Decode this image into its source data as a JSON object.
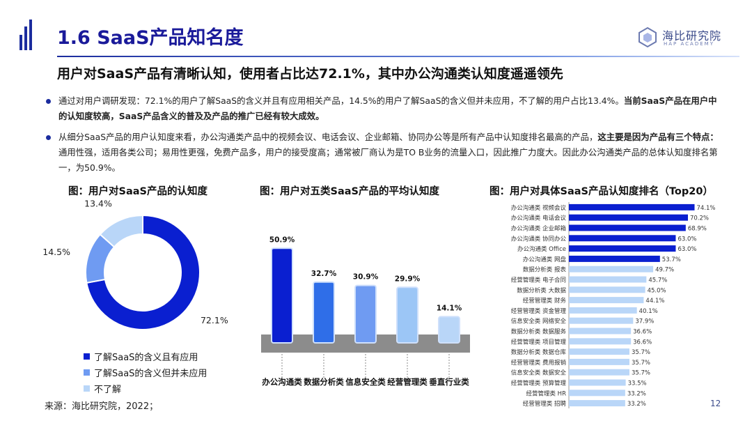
{
  "header": {
    "title": "1.6 SaaS产品知名度",
    "logo_name": "海比研究院",
    "logo_sub": "HAP ACADEMY"
  },
  "subtitle": "用户对SaaS产品有清晰认知，使用者占比达72.1%，其中办公沟通类认知度遥遥领先",
  "bullets": [
    {
      "normal": "通过对用户调研发现：72.1%的用户了解SaaS的含义并且有应用相关产品，14.5%的用户了解SaaS的含义但并未应用，不了解的用户占比13.4%。",
      "bold": "当前SaaS产品在用户中的认知度较高，SaaS产品含义的普及及产品的推广已经有较大成效。",
      "tail": ""
    },
    {
      "normal": "从细分SaaS产品的用户认知度来看，办公沟通类产品中的视频会议、电话会议、企业邮箱、协同办公等是所有产品中认知度排名最高的产品，",
      "bold": "这主要是因为产品有三个特点：",
      "tail": "通用性强，适用各类公司；易用性更强，免费产品多，用户的接受度高；通常被厂商认为是TO B业务的流量入口，因此推广力度大。因此办公沟通类产品的总体认知度排名第一，为50.9%。"
    }
  ],
  "figures": {
    "donut_title": "图：用户对SaaS产品的认知度",
    "bar_title": "图：用户对五类SaaS产品的平均认知度",
    "rank_title": "图：用户对具体SaaS产品认知度排名（Top20）"
  },
  "legend": [
    {
      "label": "了解SaaS的含义且有应用",
      "color": "#0a1fd0"
    },
    {
      "label": "了解SaaS的含义但并未应用",
      "color": "#6f9bf2"
    },
    {
      "label": "不了解",
      "color": "#b9d6f8"
    }
  ],
  "chart_data": [
    {
      "type": "pie",
      "title": "图：用户对SaaS产品的认知度",
      "categories": [
        "了解SaaS的含义且有应用",
        "了解SaaS的含义但并未应用",
        "不了解"
      ],
      "values": [
        72.1,
        14.5,
        13.4
      ],
      "labels": [
        "72.1%",
        "14.5%",
        "13.4%"
      ],
      "colors": [
        "#0a1fd0",
        "#6f9bf2",
        "#b9d6f8"
      ],
      "legend": "bottom-left"
    },
    {
      "type": "bar",
      "title": "图：用户对五类SaaS产品的平均认知度",
      "categories": [
        "办公沟通类",
        "数据分析类",
        "信息安全类",
        "经营管理类",
        "垂直行业类"
      ],
      "values": [
        50.9,
        32.7,
        30.9,
        29.9,
        14.1
      ],
      "labels": [
        "50.9%",
        "32.7%",
        "30.9%",
        "29.9%",
        "14.1%"
      ],
      "colors": [
        "#0a1fd0",
        "#2f6ee8",
        "#6f9bf2",
        "#9cc6f6",
        "#b9d6f8"
      ],
      "ylim": [
        0,
        60
      ]
    },
    {
      "type": "bar",
      "orientation": "horizontal",
      "title": "图：用户对具体SaaS产品认知度排名（Top20）",
      "categories": [
        "办公沟通类  视频会议",
        "办公沟通类  电话会议",
        "办公沟通类  企业邮箱",
        "办公沟通类  协同办公",
        "办公沟通类  Office",
        "办公沟通类  网盘",
        "数据分析类  报表",
        "经营管理类  电子合同",
        "数据分析类  大数据",
        "经营管理类  财务",
        "经营管理类  资金管理",
        "信息安全类  网络安全",
        "数据分析类  数据服务",
        "经营管理类  项目管理",
        "数据分析类  数据仓库",
        "经营管理类  费用报销",
        "信息安全类  数据安全",
        "经营管理类  预算管理",
        "经营管理类  HR",
        "经营管理类  招聘"
      ],
      "values": [
        74.1,
        70.2,
        68.9,
        63.0,
        63.0,
        53.7,
        49.7,
        45.7,
        45.0,
        44.1,
        40.1,
        37.9,
        36.6,
        36.6,
        35.7,
        35.7,
        35.7,
        33.5,
        33.2,
        33.2
      ],
      "labels": [
        "74.1%",
        "70.2%",
        "68.9%",
        "63.0%",
        "63.0%",
        "53.7%",
        "49.7%",
        "45.7%",
        "45.0%",
        "44.1%",
        "40.1%",
        "37.9%",
        "36.6%",
        "36.6%",
        "35.7%",
        "35.7%",
        "35.7%",
        "33.5%",
        "33.2%",
        "33.2%"
      ],
      "dark_count": 6,
      "colors": {
        "dark": "#0a1fd0",
        "light": "#b9d6f8"
      },
      "xlim": [
        0,
        78
      ]
    }
  ],
  "footer": {
    "source": "来源：海比研究院，2022；",
    "page": "12"
  }
}
